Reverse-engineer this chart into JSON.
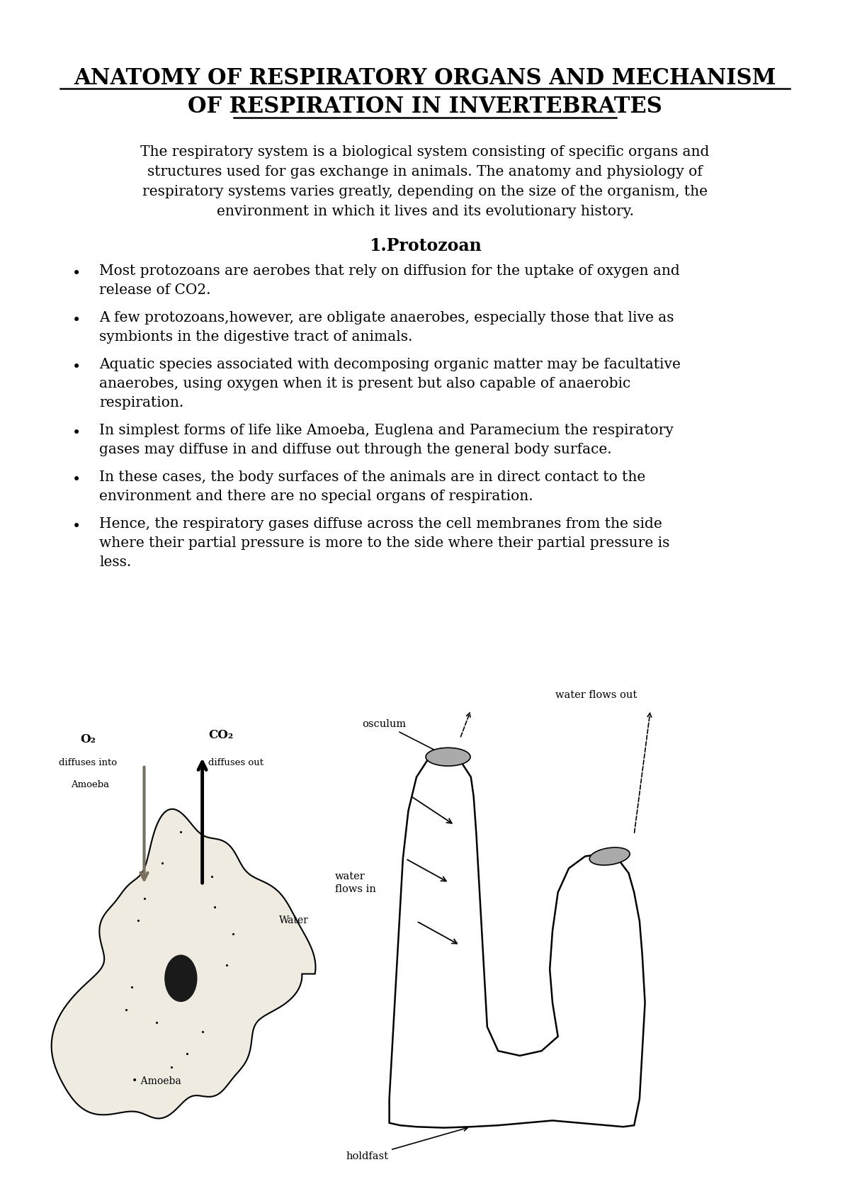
{
  "title_line1": "ANATOMY OF RESPIRATORY ORGANS AND MECHANISM",
  "title_line2": "OF RESPIRATION IN INVERTEBRATES",
  "bg_color": "#ffffff",
  "text_color": "#000000",
  "intro_lines": [
    "The respiratory system is a biological system consisting of specific organs and",
    "structures used for gas exchange in animals. The anatomy and physiology of",
    "respiratory systems varies greatly, depending on the size of the organism, the",
    "environment in which it lives and its evolutionary history."
  ],
  "section_title": "1.Protozoan",
  "bullet_blocks": [
    [
      "Most protozoans are aerobes that rely on diffusion for the uptake of oxygen and",
      "release of CO2."
    ],
    [
      "A few protozoans,however, are obligate anaerobes, especially those that live as",
      "symbionts in the digestive tract of animals."
    ],
    [
      "Aquatic species associated with decomposing organic matter may be facultative",
      "anaerobes, using oxygen when it is present but also capable of anaerobic",
      "respiration."
    ],
    [
      "In simplest forms of life like Amoeba, Euglena and Paramecium the respiratory",
      "gases may diffuse in and diffuse out through the general body surface."
    ],
    [
      "In these cases, the body surfaces of the animals are in direct contact to the",
      "environment and there are no special organs of respiration."
    ],
    [
      "Hence, the respiratory gases diffuse across the cell membranes from the side",
      "where their partial pressure is more to the side where their partial pressure is",
      "less."
    ]
  ],
  "amoeba_color": "#f0ebe0",
  "sponge_color": "#ffffff",
  "osculum_color": "#aaaaaa"
}
